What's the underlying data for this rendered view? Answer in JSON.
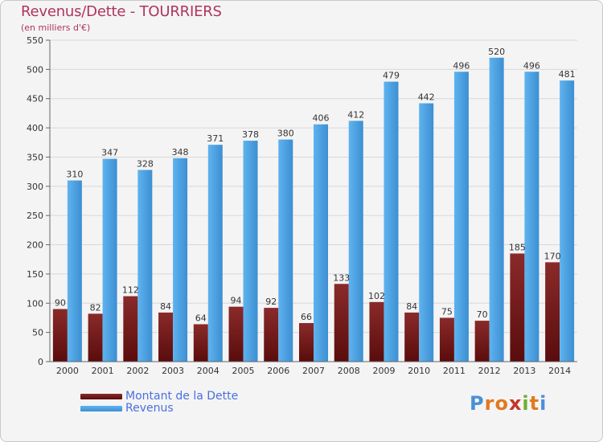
{
  "title": "Revenus/Dette - TOURRIERS",
  "subtitle": "(en milliers d'€)",
  "colors": {
    "title": "#b0345b",
    "dette": "#7a1e1e",
    "revenus": "#4fa3e3",
    "legend_text": "#4a6fe0"
  },
  "legend": {
    "dette_label": "Montant de la Dette",
    "revenus_label": "Revenus"
  },
  "logo": {
    "text": "Proxiti",
    "letters": [
      "P",
      "r",
      "o",
      "x",
      "i",
      "t",
      "i"
    ],
    "letter_colors": [
      "#4a90d9",
      "#e07a1f",
      "#e07a1f",
      "#c0392b",
      "#6fae2f",
      "#e07a1f",
      "#4a90d9"
    ]
  },
  "chart_data": {
    "type": "bar",
    "categories": [
      "2000",
      "2001",
      "2002",
      "2003",
      "2004",
      "2005",
      "2006",
      "2007",
      "2008",
      "2009",
      "2010",
      "2011",
      "2012",
      "2013",
      "2014"
    ],
    "series": [
      {
        "name": "Montant de la Dette",
        "values": [
          90,
          82,
          112,
          84,
          64,
          94,
          92,
          66,
          133,
          102,
          84,
          75,
          70,
          185,
          170
        ]
      },
      {
        "name": "Revenus",
        "values": [
          310,
          347,
          328,
          348,
          371,
          378,
          380,
          406,
          412,
          479,
          442,
          496,
          520,
          496,
          481
        ]
      }
    ],
    "ylim": [
      0,
      550
    ],
    "yticks": [
      0,
      50,
      100,
      150,
      200,
      250,
      300,
      350,
      400,
      450,
      500,
      550
    ],
    "grid": true,
    "legend_position": "bottom-left"
  }
}
